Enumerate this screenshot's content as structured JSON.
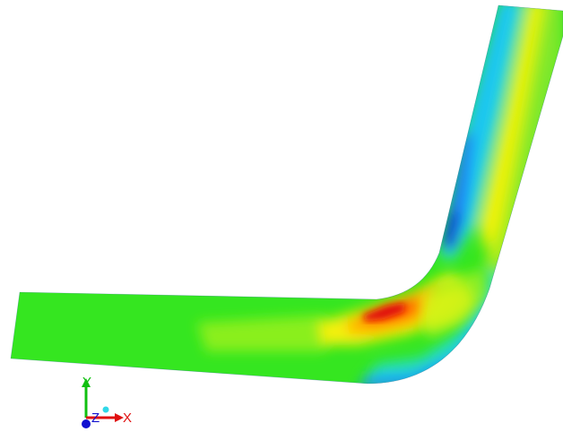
{
  "viewport": {
    "background": "#ffffff",
    "colormap": [
      "#0000ff",
      "#0080ff",
      "#00ffff",
      "#00ff80",
      "#80ff00",
      "#ffff00",
      "#ff8000",
      "#ff0000"
    ]
  },
  "triad": {
    "x_label": "X",
    "y_label": "Y",
    "z_label": "Z",
    "x_color": "#e01010",
    "y_color": "#10c010",
    "z_color": "#1010d0",
    "center_icon": "origin-dot-icon"
  }
}
